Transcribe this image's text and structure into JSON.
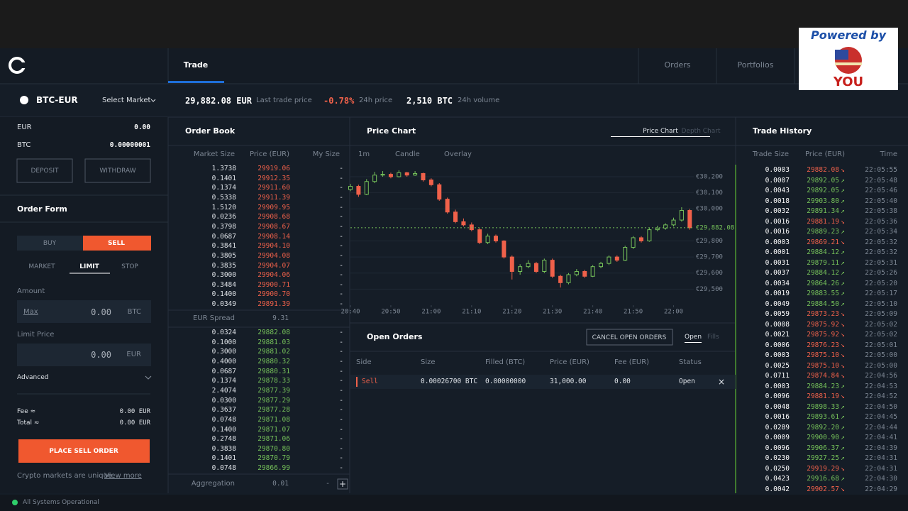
{
  "banner": {
    "top": "Powered by",
    "bottom": "YOU"
  },
  "nav": {
    "tabs": [
      "Trade",
      "Orders",
      "Portfolios"
    ]
  },
  "market": {
    "pair": "BTC-EUR",
    "select": "Select Market",
    "last_price": "29,882.08 EUR",
    "last_price_label": "Last trade price",
    "change": "-0.78%",
    "change_label": "24h price",
    "volume": "2,510 BTC",
    "volume_label": "24h volume"
  },
  "balances": [
    [
      "EUR",
      "0.00"
    ],
    [
      "BTC",
      "0.00000001"
    ]
  ],
  "wallet_buttons": [
    "DEPOSIT",
    "WITHDRAW"
  ],
  "order_form": {
    "title": "Order Form",
    "sides": [
      "BUY",
      "SELL"
    ],
    "types": [
      "MARKET",
      "LIMIT",
      "STOP"
    ],
    "amount_label": "Amount",
    "max": "Max",
    "amount": "0.00",
    "amount_unit": "BTC",
    "limit_label": "Limit Price",
    "limit": "0.00",
    "limit_unit": "EUR",
    "advanced": "Advanced",
    "fee_label": "Fee ≈",
    "fee": "0.00 EUR",
    "total_label": "Total ≈",
    "total": "0.00 EUR",
    "submit": "PLACE SELL ORDER",
    "note": "Crypto markets are unique.",
    "note_link": "View more"
  },
  "order_book": {
    "title": "Order Book",
    "columns": [
      "Market Size",
      "Price (EUR)",
      "My Size"
    ],
    "ask_color": "#f0614a",
    "bid_color": "#76c25a",
    "asks": [
      [
        "1.3738",
        "29919.06",
        "-"
      ],
      [
        "0.1401",
        "29912.35",
        "-"
      ],
      [
        "0.1374",
        "29911.60",
        "-"
      ],
      [
        "0.5338",
        "29911.39",
        "-"
      ],
      [
        "1.5120",
        "29909.95",
        "-"
      ],
      [
        "0.0236",
        "29908.68",
        "-"
      ],
      [
        "0.3798",
        "29908.67",
        "-"
      ],
      [
        "0.0687",
        "29908.14",
        "-"
      ],
      [
        "0.3841",
        "29904.10",
        "-"
      ],
      [
        "0.3805",
        "29904.08",
        "-"
      ],
      [
        "0.3835",
        "29904.07",
        "-"
      ],
      [
        "0.3000",
        "29904.06",
        "-"
      ],
      [
        "0.3484",
        "29900.71",
        "-"
      ],
      [
        "0.1400",
        "29900.70",
        "-"
      ],
      [
        "0.0349",
        "29891.39",
        "-"
      ]
    ],
    "spread_label": "EUR Spread",
    "spread": "9.31",
    "bids": [
      [
        "0.0324",
        "29882.08",
        "-"
      ],
      [
        "0.1000",
        "29881.03",
        "-"
      ],
      [
        "0.3000",
        "29881.02",
        "-"
      ],
      [
        "0.4000",
        "29880.32",
        "-"
      ],
      [
        "0.0687",
        "29880.31",
        "-"
      ],
      [
        "0.1374",
        "29878.33",
        "-"
      ],
      [
        "2.4074",
        "29877.39",
        "-"
      ],
      [
        "0.0300",
        "29877.29",
        "-"
      ],
      [
        "0.3637",
        "29877.28",
        "-"
      ],
      [
        "0.0748",
        "29871.08",
        "-"
      ],
      [
        "0.1400",
        "29871.07",
        "-"
      ],
      [
        "0.2748",
        "29871.06",
        "-"
      ],
      [
        "0.3838",
        "29870.80",
        "-"
      ],
      [
        "0.1401",
        "29870.79",
        "-"
      ],
      [
        "0.0748",
        "29866.99",
        "-"
      ]
    ],
    "aggregation_label": "Aggregation",
    "aggregation": "0.01",
    "aggregation_controls": [
      "-",
      "+"
    ]
  },
  "price_chart": {
    "title": "Price Chart",
    "tabs": [
      "Price Chart",
      "Depth Chart"
    ],
    "controls": [
      "1m",
      "Candle",
      "Overlay"
    ],
    "type": "candlestick",
    "xlim": [
      "20:40",
      "22:05"
    ],
    "xticks": [
      "20:40",
      "20:50",
      "21:00",
      "21:10",
      "21:20",
      "21:30",
      "21:40",
      "21:50",
      "22:00"
    ],
    "ylim": [
      29400,
      30275
    ],
    "yticks": [
      {
        "value": 29500,
        "label": "€29,500"
      },
      {
        "value": 29600,
        "label": "€29,600"
      },
      {
        "value": 29700,
        "label": "€29,700"
      },
      {
        "value": 29800,
        "label": "€29,800"
      },
      {
        "value": 30000,
        "label": "€30,000"
      },
      {
        "value": 30100,
        "label": "€30,100"
      },
      {
        "value": 30200,
        "label": "€30,200"
      }
    ],
    "last": {
      "value": 29882.08,
      "label": "€29,882.08"
    },
    "up_color": "#76c25a",
    "down_color": "#f0614a",
    "candles": {
      "t": [
        "20:40",
        "20:42",
        "20:44",
        "20:46",
        "20:48",
        "20:50",
        "20:52",
        "20:54",
        "20:56",
        "20:58",
        "21:00",
        "21:02",
        "21:04",
        "21:06",
        "21:08",
        "21:10",
        "21:12",
        "21:14",
        "21:16",
        "21:18",
        "21:20",
        "21:22",
        "21:24",
        "21:26",
        "21:28",
        "21:30",
        "21:32",
        "21:34",
        "21:36",
        "21:38",
        "21:40",
        "21:42",
        "21:44",
        "21:46",
        "21:48",
        "21:50",
        "21:52",
        "21:54",
        "21:56",
        "21:58",
        "22:00",
        "22:02",
        "22:04"
      ],
      "ohlc": [
        [
          30120,
          30155,
          30110,
          30140
        ],
        [
          30140,
          30150,
          30075,
          30090
        ],
        [
          30090,
          30185,
          30085,
          30170
        ],
        [
          30170,
          30230,
          30160,
          30210
        ],
        [
          30210,
          30235,
          30200,
          30215
        ],
        [
          30215,
          30225,
          30190,
          30200
        ],
        [
          30200,
          30240,
          30195,
          30225
        ],
        [
          30225,
          30230,
          30200,
          30210
        ],
        [
          30210,
          30235,
          30205,
          30220
        ],
        [
          30220,
          30225,
          30170,
          30180
        ],
        [
          30180,
          30190,
          30140,
          30150
        ],
        [
          30150,
          30160,
          30050,
          30060
        ],
        [
          30060,
          30070,
          29970,
          29980
        ],
        [
          29980,
          29995,
          29910,
          29920
        ],
        [
          29920,
          29940,
          29890,
          29900
        ],
        [
          29900,
          29915,
          29860,
          29870
        ],
        [
          29870,
          29880,
          29780,
          29790
        ],
        [
          29790,
          29845,
          29780,
          29830
        ],
        [
          29830,
          29840,
          29790,
          29800
        ],
        [
          29800,
          29805,
          29690,
          29700
        ],
        [
          29700,
          29710,
          29560,
          29610
        ],
        [
          29610,
          29655,
          29590,
          29640
        ],
        [
          29640,
          29680,
          29630,
          29660
        ],
        [
          29660,
          29670,
          29600,
          29610
        ],
        [
          29610,
          29690,
          29600,
          29680
        ],
        [
          29680,
          29690,
          29570,
          29580
        ],
        [
          29580,
          29590,
          29510,
          29540
        ],
        [
          29540,
          29600,
          29530,
          29590
        ],
        [
          29590,
          29625,
          29580,
          29610
        ],
        [
          29610,
          29620,
          29570,
          29580
        ],
        [
          29580,
          29650,
          29575,
          29640
        ],
        [
          29640,
          29670,
          29630,
          29660
        ],
        [
          29660,
          29710,
          29650,
          29700
        ],
        [
          29700,
          29710,
          29670,
          29680
        ],
        [
          29680,
          29770,
          29675,
          29760
        ],
        [
          29760,
          29830,
          29750,
          29820
        ],
        [
          29820,
          29830,
          29790,
          29800
        ],
        [
          29800,
          29880,
          29795,
          29870
        ],
        [
          29870,
          29895,
          29860,
          29880
        ],
        [
          29880,
          29910,
          29870,
          29900
        ],
        [
          29900,
          29945,
          29890,
          29930
        ],
        [
          29930,
          30010,
          29920,
          29990
        ],
        [
          29990,
          30000,
          29870,
          29882.08
        ]
      ]
    }
  },
  "open_orders": {
    "title": "Open Orders",
    "cancel_all": "CANCEL OPEN ORDERS",
    "tabs": [
      "Open",
      "Fills"
    ],
    "columns": [
      "Side",
      "Size",
      "Filled (BTC)",
      "Price (EUR)",
      "Fee (EUR)",
      "Status"
    ],
    "rows": [
      [
        "Sell",
        "0.00026700 BTC",
        "0.00000000",
        "31,000.00",
        "0.00",
        "Open",
        "×"
      ]
    ]
  },
  "trade_history": {
    "title": "Trade History",
    "columns": [
      "Trade Size",
      "Price (EUR)",
      "Time"
    ],
    "rows": [
      [
        "0.0003",
        "29882.08",
        "22:05:55",
        "↘",
        "#f0614a"
      ],
      [
        "0.0007",
        "29892.05",
        "22:05:48",
        "↗",
        "#76c25a"
      ],
      [
        "0.0043",
        "29892.05",
        "22:05:46",
        "↗",
        "#76c25a"
      ],
      [
        "0.0018",
        "29903.80",
        "22:05:40",
        "↗",
        "#76c25a"
      ],
      [
        "0.0032",
        "29891.34",
        "22:05:38",
        "↗",
        "#76c25a"
      ],
      [
        "0.0016",
        "29881.19",
        "22:05:36",
        "↘",
        "#f0614a"
      ],
      [
        "0.0016",
        "29889.23",
        "22:05:34",
        "↗",
        "#76c25a"
      ],
      [
        "0.0003",
        "29869.21",
        "22:05:32",
        "↘",
        "#f0614a"
      ],
      [
        "0.0001",
        "29884.12",
        "22:05:32",
        "↗",
        "#76c25a"
      ],
      [
        "0.0031",
        "29879.11",
        "22:05:31",
        "↗",
        "#76c25a"
      ],
      [
        "0.0037",
        "29884.12",
        "22:05:26",
        "↗",
        "#76c25a"
      ],
      [
        "0.0034",
        "29864.26",
        "22:05:20",
        "↗",
        "#76c25a"
      ],
      [
        "0.0019",
        "29883.55",
        "22:05:17",
        "↗",
        "#76c25a"
      ],
      [
        "0.0049",
        "29884.50",
        "22:05:10",
        "↗",
        "#76c25a"
      ],
      [
        "0.0059",
        "29873.23",
        "22:05:09",
        "↘",
        "#f0614a"
      ],
      [
        "0.0008",
        "29875.92",
        "22:05:02",
        "↘",
        "#f0614a"
      ],
      [
        "0.0021",
        "29875.92",
        "22:05:02",
        "↘",
        "#f0614a"
      ],
      [
        "0.0006",
        "29876.23",
        "22:05:01",
        "↘",
        "#f0614a"
      ],
      [
        "0.0003",
        "29875.10",
        "22:05:00",
        "↘",
        "#f0614a"
      ],
      [
        "0.0025",
        "29875.10",
        "22:05:00",
        "↘",
        "#f0614a"
      ],
      [
        "0.0711",
        "29874.84",
        "22:04:56",
        "↘",
        "#f0614a"
      ],
      [
        "0.0003",
        "29884.23",
        "22:04:53",
        "↗",
        "#76c25a"
      ],
      [
        "0.0096",
        "29881.19",
        "22:04:52",
        "↘",
        "#f0614a"
      ],
      [
        "0.0048",
        "29898.33",
        "22:04:50",
        "↗",
        "#76c25a"
      ],
      [
        "0.0016",
        "29893.61",
        "22:04:45",
        "↗",
        "#76c25a"
      ],
      [
        "0.0289",
        "29892.20",
        "22:04:44",
        "↗",
        "#76c25a"
      ],
      [
        "0.0009",
        "29900.90",
        "22:04:41",
        "↗",
        "#76c25a"
      ],
      [
        "0.0096",
        "29906.37",
        "22:04:39",
        "↗",
        "#76c25a"
      ],
      [
        "0.0230",
        "29927.25",
        "22:04:31",
        "↗",
        "#76c25a"
      ],
      [
        "0.0250",
        "29919.29",
        "22:04:31",
        "↘",
        "#f0614a"
      ],
      [
        "0.0423",
        "29916.68",
        "22:04:30",
        "↗",
        "#76c25a"
      ],
      [
        "0.0042",
        "29902.57",
        "22:04:29",
        "↘",
        "#f0614a"
      ]
    ]
  },
  "status": "All Systems Operational"
}
